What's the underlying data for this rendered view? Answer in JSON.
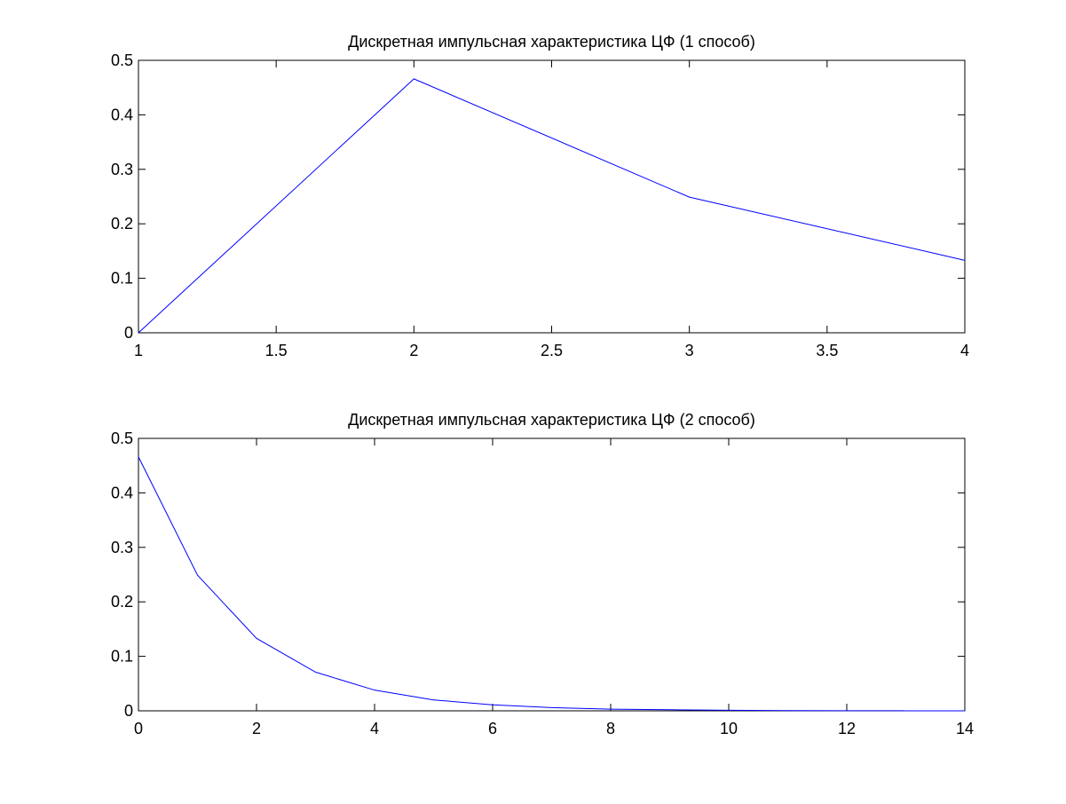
{
  "chart_data": [
    {
      "type": "line",
      "title": "Дискретная импульсная характеристика ЦФ (1 способ)",
      "xlabel": "",
      "ylabel": "",
      "xlim": [
        1,
        4
      ],
      "ylim": [
        0,
        0.5
      ],
      "xticks": [
        "1",
        "1.5",
        "2",
        "2.5",
        "3",
        "3.5",
        "4"
      ],
      "yticks": [
        "0",
        "0.1",
        "0.2",
        "0.3",
        "0.4",
        "0.5"
      ],
      "grid": false,
      "line_color": "#0000ff",
      "series": [
        {
          "x": [
            1,
            2,
            3,
            4
          ],
          "values": [
            0,
            0.466,
            0.249,
            0.133
          ]
        }
      ]
    },
    {
      "type": "line",
      "title": "Дискретная импульсная характеристика ЦФ (2 способ)",
      "xlabel": "",
      "ylabel": "",
      "xlim": [
        0,
        14
      ],
      "ylim": [
        0,
        0.5
      ],
      "xticks": [
        "0",
        "2",
        "4",
        "6",
        "8",
        "10",
        "12",
        "14"
      ],
      "yticks": [
        "0",
        "0.1",
        "0.2",
        "0.3",
        "0.4",
        "0.5"
      ],
      "grid": false,
      "line_color": "#0000ff",
      "series": [
        {
          "x": [
            0,
            1,
            2,
            3,
            4,
            5,
            6,
            7,
            8,
            9,
            10,
            11,
            12,
            13,
            14
          ],
          "values": [
            0.466,
            0.249,
            0.133,
            0.071,
            0.038,
            0.02,
            0.011,
            0.006,
            0.003,
            0.002,
            0.001,
            0.0005,
            0.0003,
            0.0001,
            0.0001
          ]
        }
      ]
    }
  ]
}
